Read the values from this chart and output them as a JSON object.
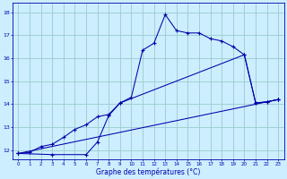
{
  "xlabel": "Graphe des températures (°C)",
  "bg_color": "#cceeff",
  "grid_color": "#99cccc",
  "line_color": "#0000aa",
  "xlim": [
    -0.5,
    23.5
  ],
  "ylim": [
    11.6,
    18.4
  ],
  "xticks": [
    0,
    1,
    2,
    3,
    4,
    5,
    6,
    7,
    8,
    9,
    10,
    11,
    12,
    13,
    14,
    15,
    16,
    17,
    18,
    19,
    20,
    21,
    22,
    23
  ],
  "yticks": [
    12,
    13,
    14,
    15,
    16,
    17,
    18
  ],
  "curve1_x": [
    0,
    1,
    2,
    3,
    4,
    5,
    6,
    7,
    8,
    9,
    10,
    11,
    12,
    13,
    14,
    15,
    16,
    17,
    18,
    19,
    20,
    21,
    22,
    23
  ],
  "curve1_y": [
    11.85,
    11.9,
    12.15,
    12.25,
    12.55,
    12.9,
    13.1,
    13.45,
    13.55,
    14.05,
    14.3,
    16.35,
    16.65,
    17.9,
    17.2,
    17.1,
    17.1,
    16.85,
    16.75,
    16.5,
    16.15,
    14.05,
    14.1,
    14.2
  ],
  "curve2_x": [
    0,
    3,
    6,
    7,
    8,
    9,
    20,
    21,
    22,
    23
  ],
  "curve2_y": [
    11.85,
    11.8,
    11.8,
    12.35,
    13.5,
    14.05,
    16.15,
    14.05,
    14.1,
    14.2
  ],
  "curve3_x": [
    0,
    23
  ],
  "curve3_y": [
    11.85,
    14.2
  ],
  "marker": "+"
}
